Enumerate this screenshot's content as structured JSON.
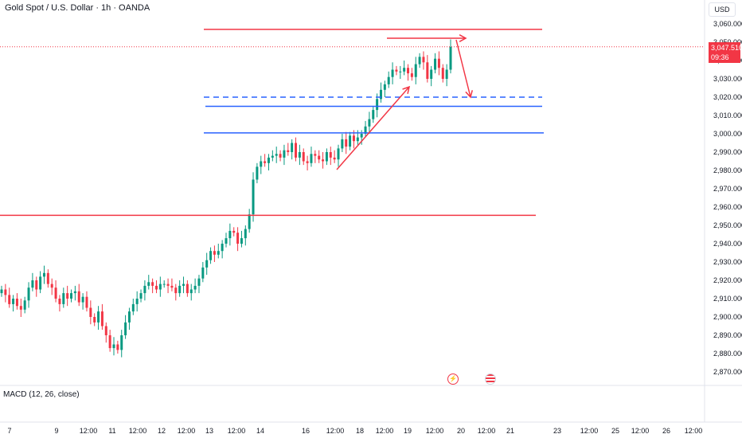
{
  "header": {
    "title": "Gold Spot / U.S. Dollar · 1h · OANDA",
    "currency": "USD"
  },
  "price_badge": {
    "price": "3,047.510",
    "countdown": "09:36"
  },
  "macd": {
    "label": "MACD (12, 26, close)"
  },
  "events": {
    "flash_icon": "flash-icon",
    "flag_icon": "us-flag-icon"
  },
  "colors": {
    "up": "#089981",
    "down": "#f23645",
    "red_line": "#f23645",
    "blue_line": "#2962ff",
    "price_line": "#f23645"
  },
  "chart_data": {
    "type": "candlestick",
    "title": "Gold Spot / U.S. Dollar · 1h · OANDA",
    "ylim": [
      2862,
      3068
    ],
    "y_ticks": [
      "3,060.000",
      "3,050.000",
      "3,040.000",
      "3,030.000",
      "3,020.000",
      "3,010.000",
      "3,000.000",
      "2,990.000",
      "2,980.000",
      "2,970.000",
      "2,960.000",
      "2,950.000",
      "2,940.000",
      "2,930.000",
      "2,920.000",
      "2,910.000",
      "2,900.000",
      "2,890.000",
      "2,880.000",
      "2,870.000"
    ],
    "x_ticks": [
      "7",
      "9",
      "12:00",
      "11",
      "12:00",
      "12",
      "12:00",
      "13",
      "12:00",
      "14",
      "16",
      "12:00",
      "18",
      "12:00",
      "19",
      "12:00",
      "20",
      "12:00",
      "21",
      "23",
      "12:00",
      "25",
      "12:00",
      "26",
      "12:00"
    ],
    "last_price": 3047.51,
    "candles_close": [
      2915,
      2912,
      2907,
      2910,
      2906,
      2904,
      2909,
      2916,
      2920,
      2915,
      2922,
      2924,
      2918,
      2916,
      2910,
      2907,
      2913,
      2910,
      2913,
      2914,
      2908,
      2911,
      2905,
      2900,
      2897,
      2903,
      2895,
      2890,
      2883,
      2885,
      2882,
      2890,
      2897,
      2903,
      2907,
      2910,
      2913,
      2917,
      2919,
      2917,
      2915,
      2918,
      2918,
      2917,
      2916,
      2913,
      2917,
      2918,
      2913,
      2915,
      2917,
      2921,
      2927,
      2931,
      2936,
      2934,
      2936,
      2940,
      2943,
      2947,
      2946,
      2940,
      2943,
      2948,
      2956,
      2975,
      2982,
      2985,
      2984,
      2987,
      2988,
      2989,
      2987,
      2991,
      2990,
      2995,
      2987,
      2990,
      2985,
      2984,
      2989,
      2988,
      2986,
      2985,
      2990,
      2987,
      2986,
      2992,
      2997,
      2993,
      2999,
      2996,
      2998,
      3000,
      3004,
      3008,
      3013,
      3019,
      3024,
      3027,
      3031,
      3035,
      3034,
      3034,
      3036,
      3033,
      3031,
      3038,
      3042,
      3039,
      3030,
      3035,
      3041,
      3036,
      3030,
      3035,
      3047.51
    ],
    "levels": [
      {
        "name": "resistance-top",
        "price": 3057,
        "color": "red"
      },
      {
        "name": "dashed-support",
        "price": 3020,
        "color": "blue",
        "dashed": true
      },
      {
        "name": "support-1",
        "price": 3015,
        "color": "blue"
      },
      {
        "name": "support-2",
        "price": 3000.5,
        "color": "blue"
      },
      {
        "name": "support-low",
        "price": 2955.5,
        "color": "red"
      }
    ]
  }
}
